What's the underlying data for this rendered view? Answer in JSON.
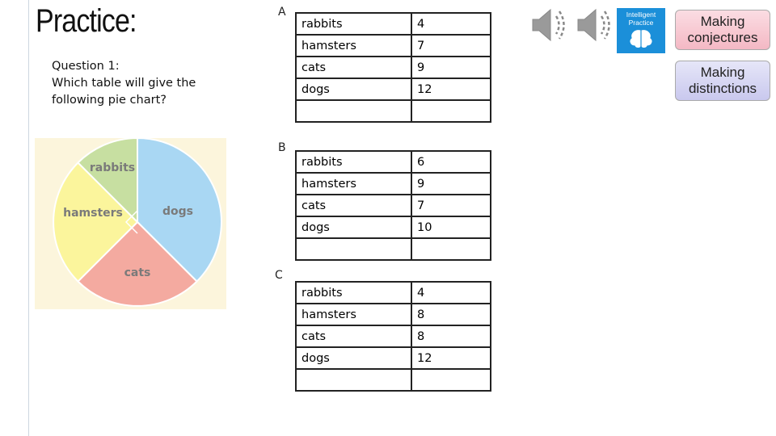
{
  "title": "Practice:",
  "question": {
    "number": "Question 1:",
    "text": "Which table will give the following pie chart?"
  },
  "pie": {
    "labels": [
      "rabbits",
      "hamsters",
      "dogs",
      "cats"
    ]
  },
  "tables": [
    {
      "label": "A",
      "rows": [
        [
          "rabbits",
          4
        ],
        [
          "hamsters",
          7
        ],
        [
          "cats",
          9
        ],
        [
          "dogs",
          12
        ]
      ]
    },
    {
      "label": "B",
      "rows": [
        [
          "rabbits",
          6
        ],
        [
          "hamsters",
          9
        ],
        [
          "cats",
          7
        ],
        [
          "dogs",
          10
        ]
      ]
    },
    {
      "label": "C",
      "rows": [
        [
          "rabbits",
          4
        ],
        [
          "hamsters",
          8
        ],
        [
          "cats",
          8
        ],
        [
          "dogs",
          12
        ]
      ]
    }
  ],
  "logo": "Intelligent Practice",
  "buttons": [
    "Making conjectures",
    "Making distinctions"
  ]
}
